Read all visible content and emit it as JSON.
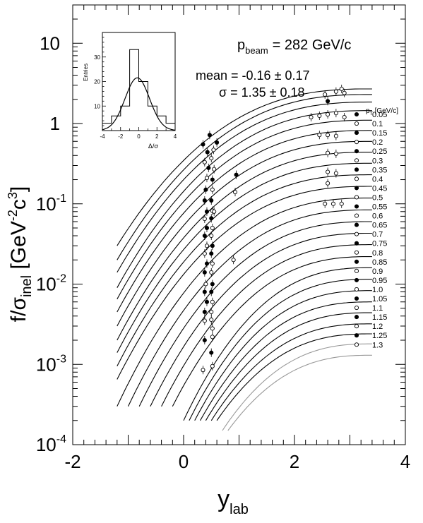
{
  "chart_data": {
    "type": "line",
    "xlabel_main": "y",
    "xlabel_sub": "lab",
    "ylabel_main": "f/σ",
    "ylabel_sub": "inel",
    "ylabel_unit_a": " [GeV",
    "ylabel_unit_exp1": "-2",
    "ylabel_unit_b": "c",
    "ylabel_unit_exp2": "3",
    "ylabel_unit_c": "]",
    "xlim": [
      -2,
      4
    ],
    "ylim": [
      0.0001,
      30
    ],
    "yscale": "log",
    "x_ticks": [
      "-2",
      "0",
      "2",
      "4"
    ],
    "x_tick_values": [
      -2,
      0,
      2,
      4
    ],
    "y_ticks": [
      {
        "value": 0.0001,
        "base": "10",
        "exp": "-4"
      },
      {
        "value": 0.001,
        "base": "10",
        "exp": "-3"
      },
      {
        "value": 0.01,
        "base": "10",
        "exp": "-2"
      },
      {
        "value": 0.1,
        "base": "10",
        "exp": "-1"
      },
      {
        "value": 1,
        "base": "1",
        "exp": ""
      },
      {
        "value": 10,
        "base": "10",
        "exp": ""
      }
    ],
    "annotations": {
      "pbeam_main": "p",
      "pbeam_sub": "beam",
      "pbeam_value": "=  282 GeV/c",
      "mean": "mean = -0.16 ± 0.17",
      "sigma": "σ  =  1.35 ± 0.18",
      "pt_header_main": "p",
      "pt_header_sub": "T",
      "pt_header_unit": " [GeV/c]"
    },
    "pt_labels": [
      "0.05",
      "0.1",
      "0.15",
      "0.2",
      "0.25",
      "0.3",
      "0.35",
      "0.4",
      "0.45",
      "0.5",
      "0.55",
      "0.6",
      "0.65",
      "0.7",
      "0.75",
      "0.8",
      "0.85",
      "0.9",
      "0.95",
      "1.0",
      "1.05",
      "1.1",
      "1.15",
      "1.2",
      "1.25",
      "1.3"
    ],
    "curve_x_start": [
      -1.2,
      -1.2,
      -1.2,
      -1.2,
      -1.2,
      -1.2,
      -1.2,
      -1.2,
      -1.2,
      -1.2,
      -1.2,
      -1.2,
      -1.0,
      -0.8,
      -0.6,
      -0.4,
      -0.2,
      0.0,
      0.1,
      0.2,
      0.3,
      0.4,
      0.5,
      0.6,
      0.7,
      0.8
    ],
    "curve_y_start": [
      0.03,
      0.02,
      0.014,
      0.009,
      0.0065,
      0.0045,
      0.003,
      0.002,
      0.0014,
      0.00095,
      0.00065,
      0.0003,
      0.0003,
      0.0003,
      0.0003,
      0.0003,
      0.0003,
      0.0002,
      0.0002,
      0.0002,
      0.0002,
      0.0002,
      0.0002,
      0.0002,
      0.00015,
      0.00015
    ],
    "curve_y_end": [
      2.7,
      2.3,
      1.85,
      1.45,
      1.1,
      0.82,
      0.6,
      0.44,
      0.32,
      0.23,
      0.165,
      0.118,
      0.084,
      0.06,
      0.043,
      0.031,
      0.022,
      0.016,
      0.0115,
      0.0083,
      0.006,
      0.0044,
      0.0032,
      0.0024,
      0.0018,
      0.0013
    ],
    "curve_x_end": 3.4,
    "data_points": [
      {
        "x": 0.35,
        "y": 0.55,
        "f": 1
      },
      {
        "x": 0.47,
        "y": 0.72,
        "f": 1
      },
      {
        "x": 0.6,
        "y": 0.58,
        "f": 1
      },
      {
        "x": 0.43,
        "y": 0.44,
        "f": 1
      },
      {
        "x": 0.54,
        "y": 0.47,
        "f": 0
      },
      {
        "x": 0.38,
        "y": 0.33,
        "f": 0
      },
      {
        "x": 0.5,
        "y": 0.37,
        "f": 0
      },
      {
        "x": 0.45,
        "y": 0.28,
        "f": 1
      },
      {
        "x": 0.55,
        "y": 0.27,
        "f": 0
      },
      {
        "x": 0.42,
        "y": 0.21,
        "f": 0
      },
      {
        "x": 0.52,
        "y": 0.2,
        "f": 1
      },
      {
        "x": 0.4,
        "y": 0.15,
        "f": 1
      },
      {
        "x": 0.52,
        "y": 0.15,
        "f": 0
      },
      {
        "x": 0.38,
        "y": 0.11,
        "f": 1
      },
      {
        "x": 0.5,
        "y": 0.11,
        "f": 1
      },
      {
        "x": 0.42,
        "y": 0.08,
        "f": 1
      },
      {
        "x": 0.52,
        "y": 0.082,
        "f": 0
      },
      {
        "x": 0.55,
        "y": 0.08,
        "f": 0
      },
      {
        "x": 0.38,
        "y": 0.065,
        "f": 0
      },
      {
        "x": 0.5,
        "y": 0.066,
        "f": 1
      },
      {
        "x": 0.42,
        "y": 0.05,
        "f": 1
      },
      {
        "x": 0.52,
        "y": 0.05,
        "f": 0
      },
      {
        "x": 0.38,
        "y": 0.04,
        "f": 1
      },
      {
        "x": 0.5,
        "y": 0.04,
        "f": 0
      },
      {
        "x": 0.42,
        "y": 0.03,
        "f": 0
      },
      {
        "x": 0.52,
        "y": 0.03,
        "f": 1
      },
      {
        "x": 0.38,
        "y": 0.024,
        "f": 0
      },
      {
        "x": 0.5,
        "y": 0.024,
        "f": 1
      },
      {
        "x": 0.42,
        "y": 0.018,
        "f": 1
      },
      {
        "x": 0.52,
        "y": 0.018,
        "f": 0
      },
      {
        "x": 0.38,
        "y": 0.014,
        "f": 1
      },
      {
        "x": 0.5,
        "y": 0.014,
        "f": 0
      },
      {
        "x": 0.4,
        "y": 0.01,
        "f": 0
      },
      {
        "x": 0.52,
        "y": 0.01,
        "f": 1
      },
      {
        "x": 0.38,
        "y": 0.008,
        "f": 1
      },
      {
        "x": 0.5,
        "y": 0.008,
        "f": 1
      },
      {
        "x": 0.42,
        "y": 0.006,
        "f": 1
      },
      {
        "x": 0.52,
        "y": 0.006,
        "f": 0
      },
      {
        "x": 0.38,
        "y": 0.0045,
        "f": 1
      },
      {
        "x": 0.5,
        "y": 0.0045,
        "f": 0
      },
      {
        "x": 0.38,
        "y": 0.0035,
        "f": 0
      },
      {
        "x": 0.5,
        "y": 0.0036,
        "f": 0
      },
      {
        "x": 0.52,
        "y": 0.0028,
        "f": 0
      },
      {
        "x": 0.38,
        "y": 0.002,
        "f": 1
      },
      {
        "x": 0.52,
        "y": 0.0022,
        "f": 0
      },
      {
        "x": 0.5,
        "y": 0.0014,
        "f": 1
      },
      {
        "x": 0.35,
        "y": 0.00085,
        "f": 0
      },
      {
        "x": 0.52,
        "y": 0.00095,
        "f": 0
      },
      {
        "x": 0.95,
        "y": 0.23,
        "f": 1
      },
      {
        "x": 0.93,
        "y": 0.14,
        "f": 0
      },
      {
        "x": 0.9,
        "y": 0.02,
        "f": 0
      },
      {
        "x": 2.55,
        "y": 2.3,
        "f": 0
      },
      {
        "x": 2.6,
        "y": 1.9,
        "f": 1
      },
      {
        "x": 2.3,
        "y": 1.2,
        "f": 0
      },
      {
        "x": 2.45,
        "y": 1.25,
        "f": 0
      },
      {
        "x": 2.6,
        "y": 1.3,
        "f": 0
      },
      {
        "x": 2.75,
        "y": 1.35,
        "f": 0
      },
      {
        "x": 2.45,
        "y": 0.72,
        "f": 0
      },
      {
        "x": 2.6,
        "y": 0.72,
        "f": 0
      },
      {
        "x": 2.75,
        "y": 0.7,
        "f": 0
      },
      {
        "x": 2.6,
        "y": 0.43,
        "f": 0
      },
      {
        "x": 2.75,
        "y": 0.42,
        "f": 0
      },
      {
        "x": 2.6,
        "y": 0.25,
        "f": 0
      },
      {
        "x": 2.75,
        "y": 0.24,
        "f": 0
      },
      {
        "x": 2.6,
        "y": 0.18,
        "f": 0
      },
      {
        "x": 2.55,
        "y": 0.1,
        "f": 0
      },
      {
        "x": 2.7,
        "y": 0.1,
        "f": 0
      },
      {
        "x": 2.85,
        "y": 0.1,
        "f": 0
      },
      {
        "x": 2.75,
        "y": 2.5,
        "f": 0
      },
      {
        "x": 2.9,
        "y": 2.4,
        "f": 0
      },
      {
        "x": 2.85,
        "y": 2.7,
        "f": 0
      },
      {
        "x": 2.9,
        "y": 1.2,
        "f": 0
      }
    ],
    "inset": {
      "type": "histogram",
      "xlabel": "Δ/σ",
      "ylabel": "Entries",
      "xlim": [
        -4,
        4
      ],
      "ylim": [
        0,
        40
      ],
      "x_ticks": [
        "-4",
        "-2",
        "0",
        "2",
        "4"
      ],
      "x_tick_values": [
        -4,
        -2,
        0,
        2,
        4
      ],
      "y_ticks": [
        "10",
        "20",
        "30"
      ],
      "y_tick_values": [
        10,
        20,
        30
      ],
      "bin_edges": [
        -4,
        -3,
        -2,
        -1,
        0,
        1,
        2,
        3,
        4
      ],
      "counts": [
        3,
        6,
        10,
        33,
        20,
        10,
        6,
        3
      ],
      "fit_mean": -0.16,
      "fit_sigma": 1.35,
      "fit_norm": 21.5
    }
  }
}
